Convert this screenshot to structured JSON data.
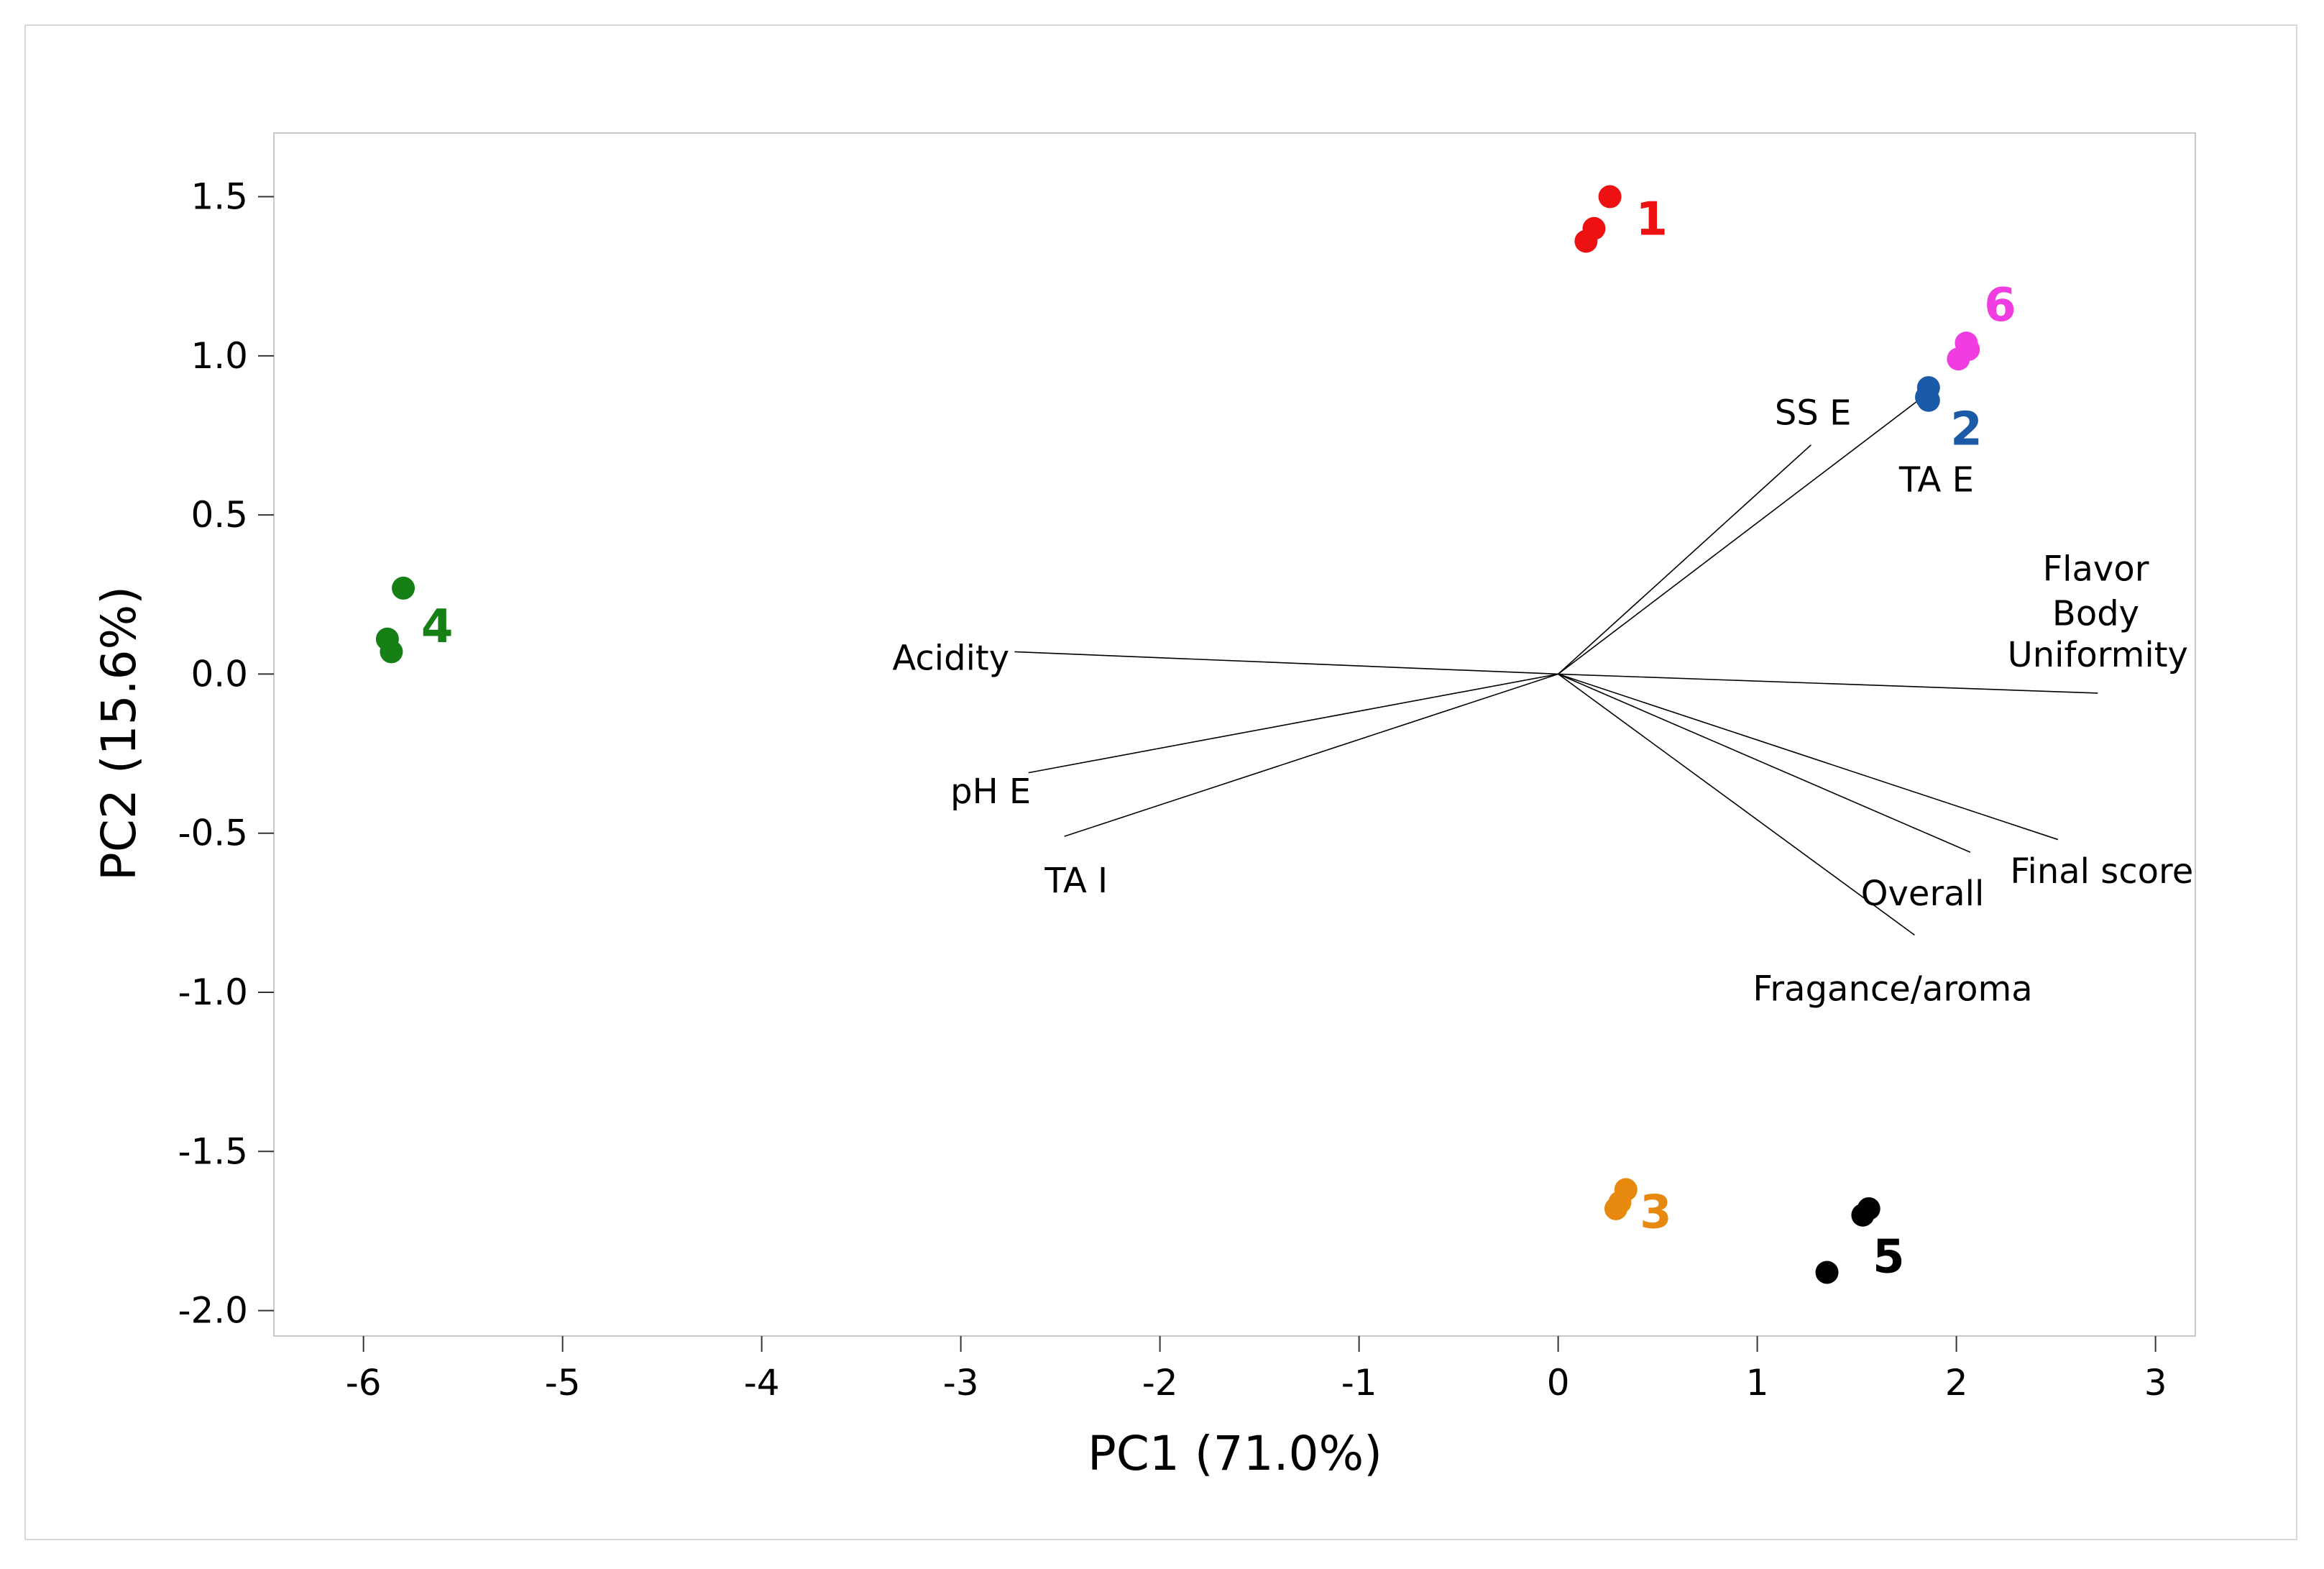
{
  "chart_data": {
    "type": "scatter",
    "subtype": "biplot",
    "title": "",
    "xlabel": "PC1 (71.0%)",
    "ylabel": "PC2 (15.6%)",
    "xlim": [
      -6.45,
      3.2
    ],
    "ylim": [
      -2.08,
      1.7
    ],
    "xticks": [
      -6,
      -5,
      -4,
      -3,
      -2,
      -1,
      0,
      1,
      2,
      3
    ],
    "yticks": [
      -2.0,
      -1.5,
      -1.0,
      -0.5,
      0.0,
      0.5,
      1.0,
      1.5
    ],
    "xtick_labels": [
      "-6",
      "-5",
      "-4",
      "-3",
      "-2",
      "-1",
      "0",
      "1",
      "2",
      "3"
    ],
    "ytick_labels": [
      "-2.0",
      "-1.5",
      "-1.0",
      "-0.5",
      "0.0",
      "0.5",
      "1.0",
      "1.5"
    ],
    "grid": false,
    "groups": [
      {
        "name": "1",
        "color": "#ee1111",
        "points": [
          [
            0.26,
            1.5
          ],
          [
            0.18,
            1.4
          ],
          [
            0.14,
            1.36
          ]
        ],
        "label_pos": [
          0.47,
          1.43
        ]
      },
      {
        "name": "2",
        "color": "#1a5aa6",
        "points": [
          [
            1.86,
            0.9
          ],
          [
            1.85,
            0.87
          ],
          [
            1.86,
            0.86
          ]
        ],
        "label_pos": [
          2.05,
          0.77
        ]
      },
      {
        "name": "3",
        "color": "#e8890f",
        "points": [
          [
            0.34,
            -1.62
          ],
          [
            0.31,
            -1.66
          ],
          [
            0.29,
            -1.68
          ]
        ],
        "label_pos": [
          0.49,
          -1.69
        ]
      },
      {
        "name": "4",
        "color": "#168016",
        "points": [
          [
            -5.8,
            0.27
          ],
          [
            -5.88,
            0.11
          ],
          [
            -5.86,
            0.07
          ]
        ],
        "label_pos": [
          -5.63,
          0.15
        ]
      },
      {
        "name": "5",
        "color": "#000000",
        "points": [
          [
            1.56,
            -1.68
          ],
          [
            1.53,
            -1.7
          ],
          [
            1.35,
            -1.88
          ]
        ],
        "label_pos": [
          1.66,
          -1.83
        ]
      },
      {
        "name": "6",
        "color": "#f03ce0",
        "points": [
          [
            2.05,
            1.04
          ],
          [
            2.06,
            1.02
          ],
          [
            2.01,
            0.99
          ]
        ],
        "label_pos": [
          2.22,
          1.16
        ]
      }
    ],
    "vectors": [
      {
        "name": "SS E",
        "end": [
          1.27,
          0.72
        ],
        "label_pos": [
          1.28,
          0.82
        ],
        "anchor": "middle"
      },
      {
        "name": "TA E",
        "end": [
          1.83,
          0.87
        ],
        "label_pos": [
          1.9,
          0.61
        ],
        "anchor": "middle"
      },
      {
        "name": "Uniformity",
        "end": [
          2.71,
          -0.06
        ],
        "label_pos": [
          2.71,
          0.06
        ],
        "anchor": "middle"
      },
      {
        "name": "Final score",
        "end": [
          2.51,
          -0.52
        ],
        "label_pos": [
          2.73,
          -0.62
        ],
        "anchor": "middle"
      },
      {
        "name": "Overall",
        "end": [
          2.07,
          -0.56
        ],
        "label_pos": [
          1.83,
          -0.69
        ],
        "anchor": "middle"
      },
      {
        "name": "Fragance/aroma",
        "end": [
          1.79,
          -0.82
        ],
        "label_pos": [
          1.68,
          -0.99
        ],
        "anchor": "middle"
      },
      {
        "name": "Acidity",
        "end": [
          -2.73,
          0.07
        ],
        "label_pos": [
          -3.05,
          0.05
        ],
        "anchor": "middle"
      },
      {
        "name": "pH E",
        "end": [
          -2.66,
          -0.31
        ],
        "label_pos": [
          -2.85,
          -0.37
        ],
        "anchor": "middle"
      },
      {
        "name": "TA I",
        "end": [
          -2.48,
          -0.51
        ],
        "label_pos": [
          -2.42,
          -0.65
        ],
        "anchor": "middle"
      }
    ],
    "extra_labels": [
      {
        "text": "Flavor",
        "pos": [
          2.7,
          0.33
        ]
      },
      {
        "text": "Body",
        "pos": [
          2.7,
          0.19
        ]
      }
    ]
  }
}
